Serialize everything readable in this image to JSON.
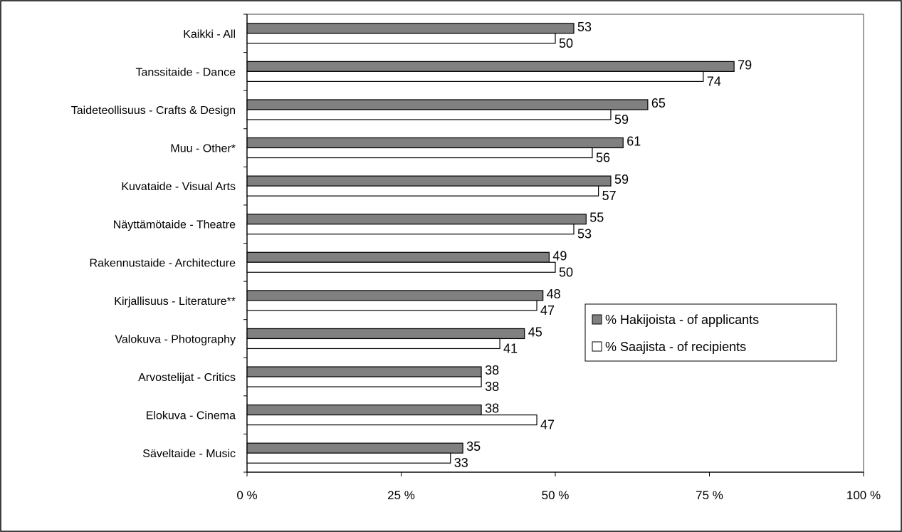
{
  "chart_data": {
    "type": "bar",
    "orientation": "horizontal",
    "categories": [
      "Kaikki  - All",
      "Tanssitaide - Dance",
      "Taideteollisuus - Crafts & Design",
      "Muu - Other*",
      "Kuvataide - Visual Arts",
      "Näyttämötaide - Theatre",
      "Rakennustaide - Architecture",
      "Kirjallisuus - Literature**",
      "Valokuva - Photography",
      "Arvostelijat - Critics",
      "Elokuva - Cinema",
      "Säveltaide - Music"
    ],
    "series": [
      {
        "name": "% Hakijoista - of applicants",
        "color": "#808080",
        "values": [
          53,
          79,
          65,
          61,
          59,
          55,
          49,
          48,
          45,
          38,
          38,
          35
        ]
      },
      {
        "name": "% Saajista - of recipients",
        "color": "#ffffff",
        "values": [
          50,
          74,
          59,
          56,
          57,
          53,
          50,
          47,
          41,
          38,
          47,
          33
        ]
      }
    ],
    "xlim": [
      0,
      100
    ],
    "xticks": [
      0,
      25,
      50,
      75,
      100
    ],
    "xtick_labels": [
      "0 %",
      "25 %",
      "50 %",
      "75 %",
      "100 %"
    ],
    "legend_position": "right",
    "grid": false
  }
}
